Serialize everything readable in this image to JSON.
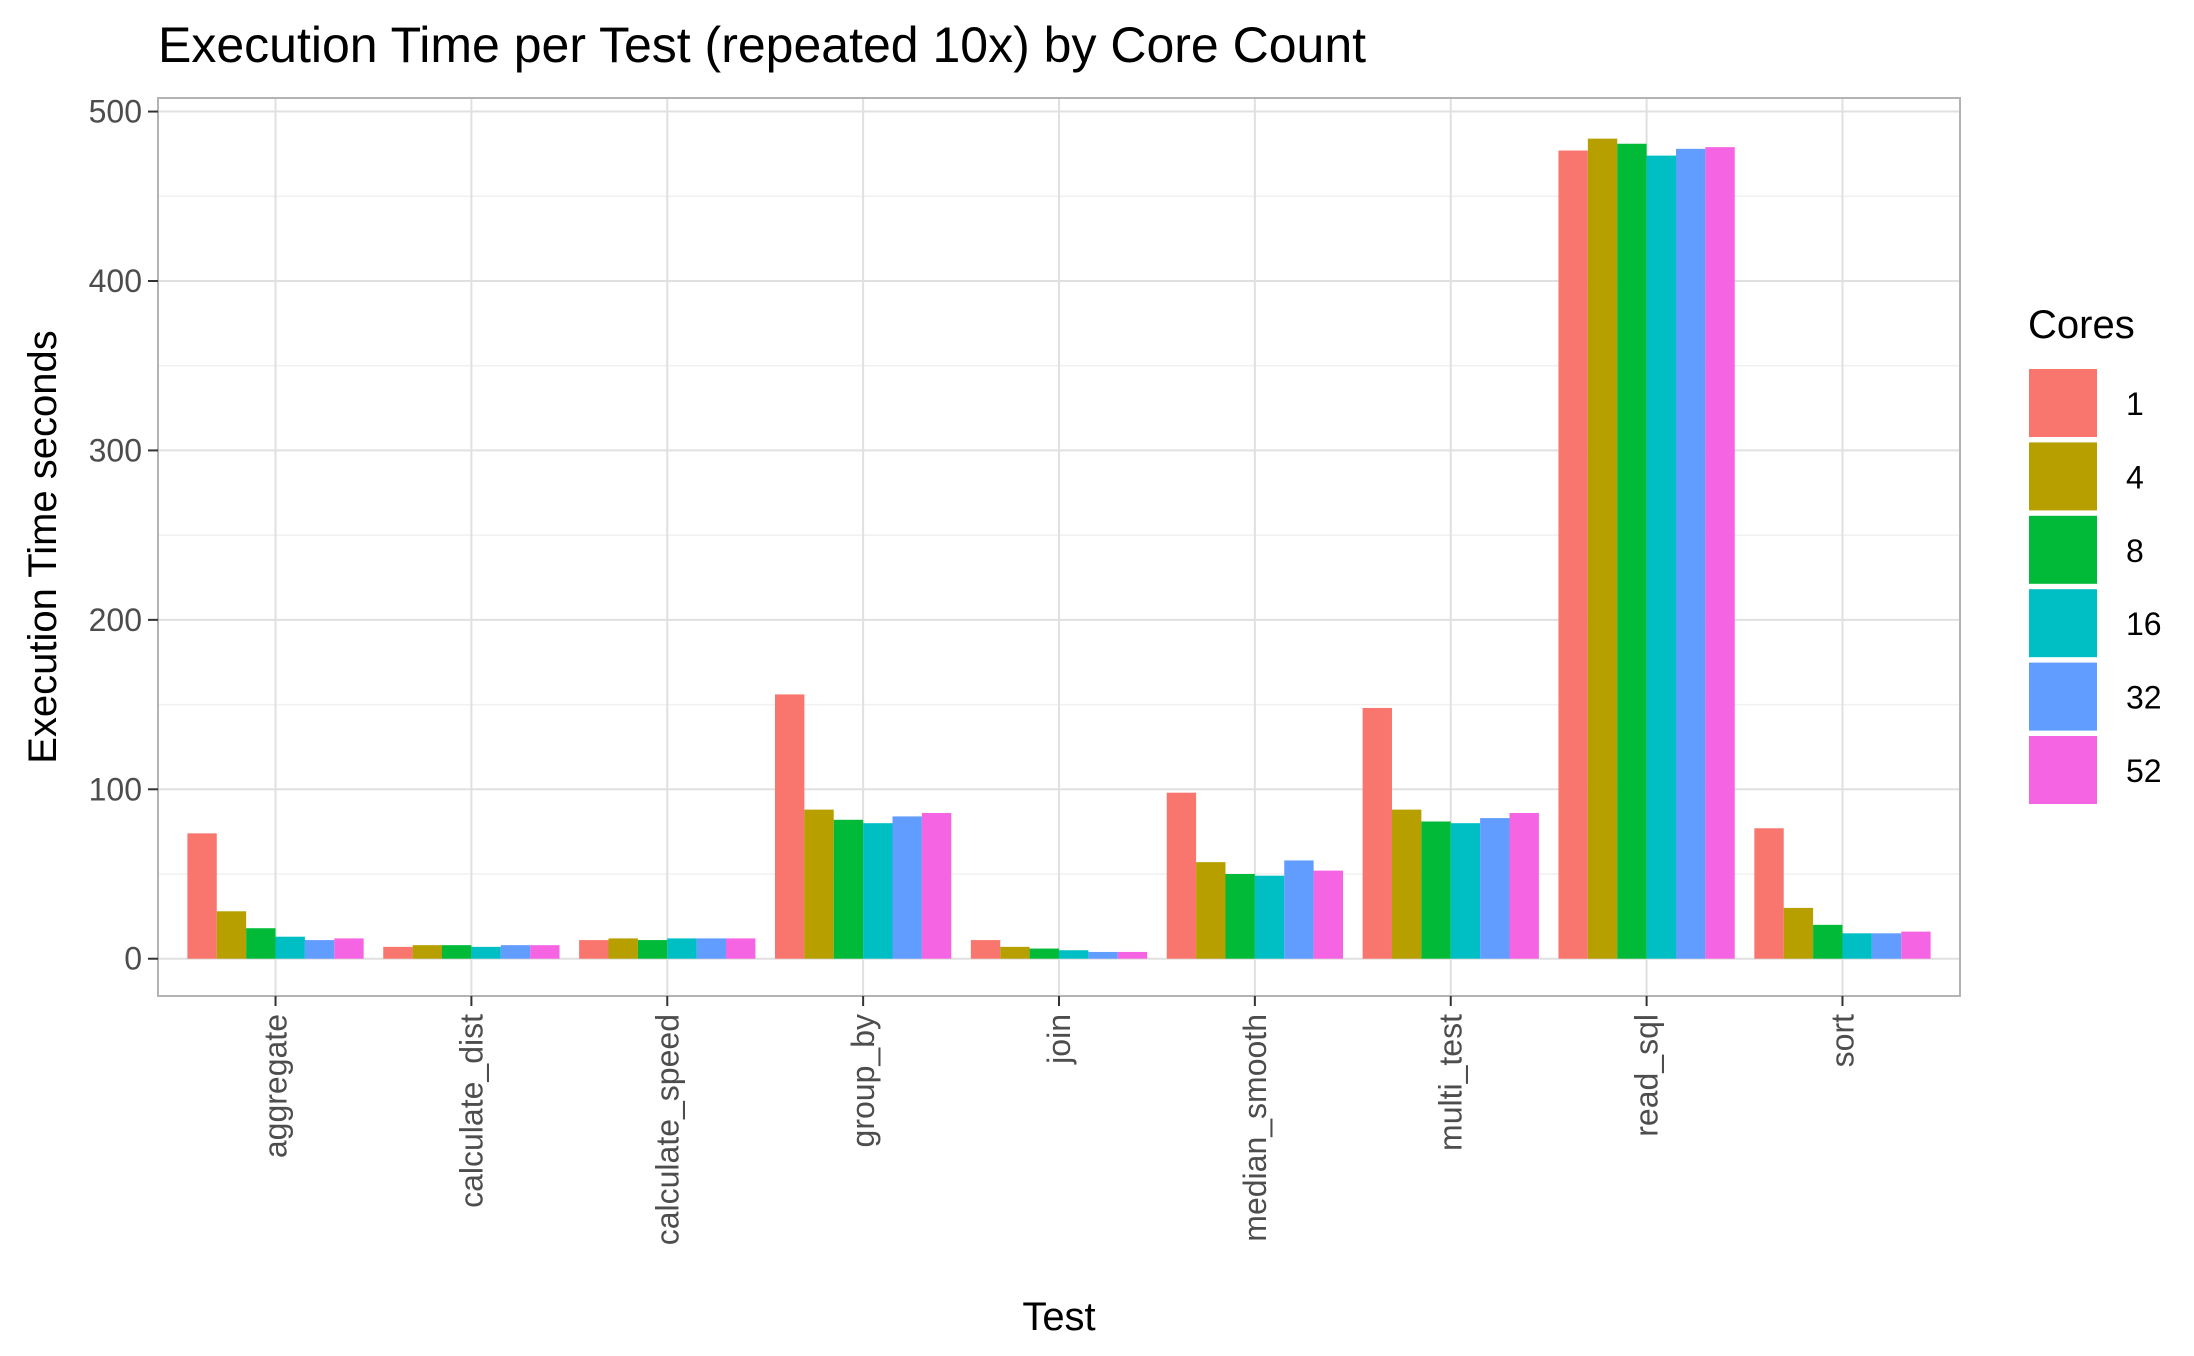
{
  "chart_data": {
    "type": "bar",
    "title": "Execution Time per Test (repeated 10x) by Core Count",
    "xlabel": "Test",
    "ylabel": "Execution Time seconds",
    "ylim": [
      -22,
      508
    ],
    "yticks": [
      0,
      100,
      200,
      300,
      400,
      500
    ],
    "grid": true,
    "legend": {
      "title": "Cores",
      "position": "right"
    },
    "categories": [
      "aggregate",
      "calculate_dist",
      "calculate_speed",
      "group_by",
      "join",
      "median_smooth",
      "multi_test",
      "read_sql",
      "sort"
    ],
    "series": [
      {
        "name": "1",
        "color": "#F8766D",
        "values": [
          74,
          7,
          11,
          156,
          11,
          98,
          148,
          477,
          77
        ]
      },
      {
        "name": "4",
        "color": "#B79F00",
        "values": [
          28,
          8,
          12,
          88,
          7,
          57,
          88,
          484,
          30
        ]
      },
      {
        "name": "8",
        "color": "#00BA38",
        "values": [
          18,
          8,
          11,
          82,
          6,
          50,
          81,
          481,
          20
        ]
      },
      {
        "name": "16",
        "color": "#00BFC4",
        "values": [
          13,
          7,
          12,
          80,
          5,
          49,
          80,
          474,
          15
        ]
      },
      {
        "name": "32",
        "color": "#619CFF",
        "values": [
          11,
          8,
          12,
          84,
          4,
          58,
          83,
          478,
          15
        ]
      },
      {
        "name": "52",
        "color": "#F564E3",
        "values": [
          12,
          8,
          12,
          86,
          4,
          52,
          86,
          479,
          16
        ]
      }
    ]
  }
}
